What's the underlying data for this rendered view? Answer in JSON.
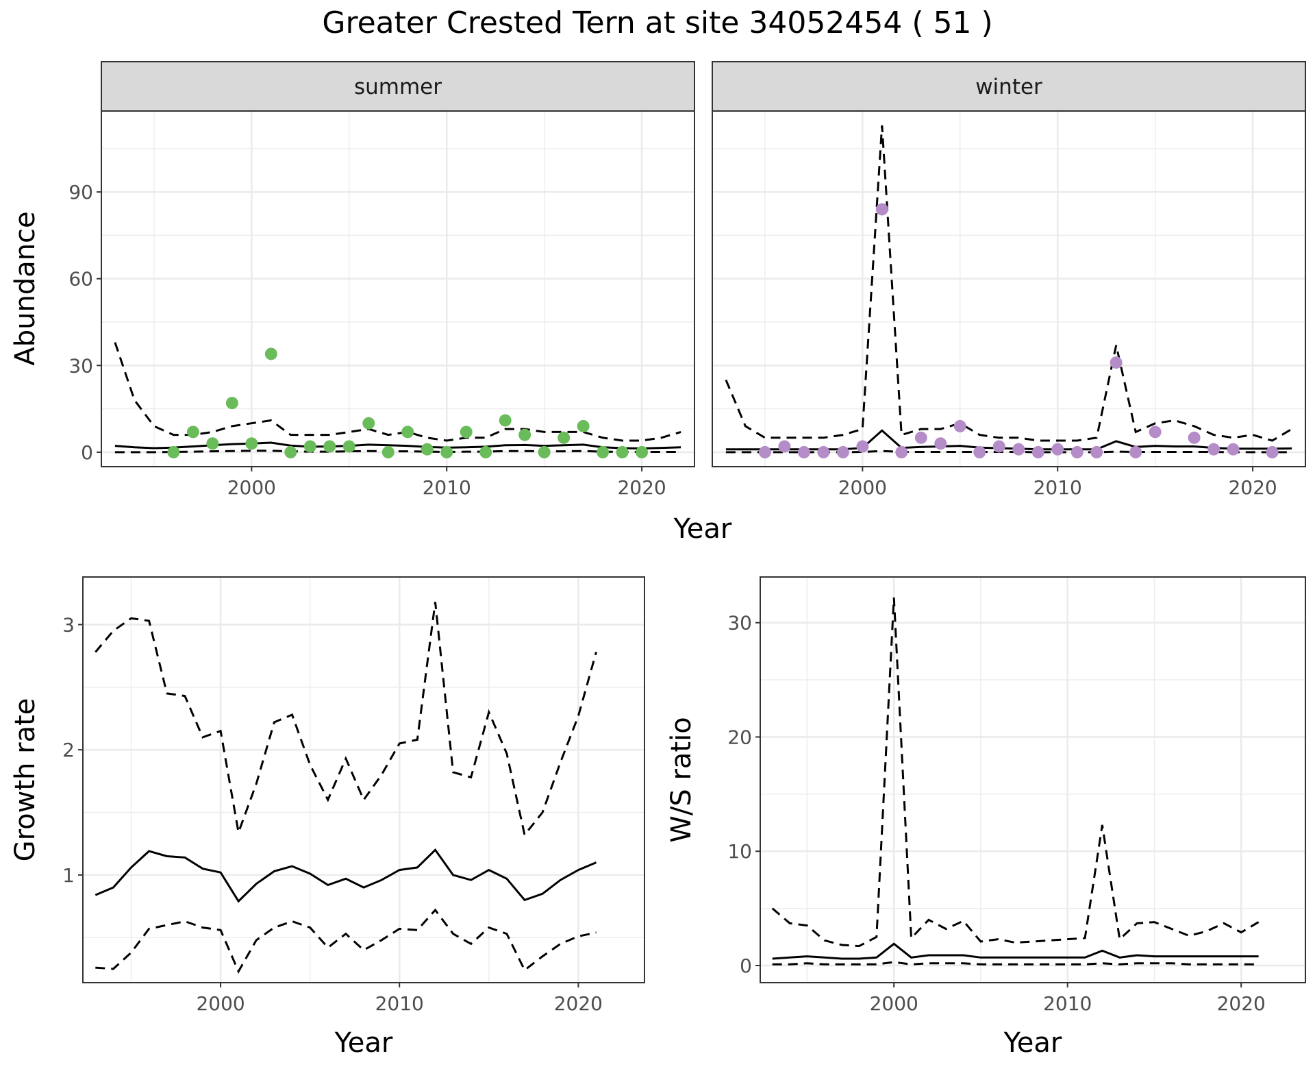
{
  "figure": {
    "title": "Greater Crested Tern at site 34052454 ( 51 )"
  },
  "chart_data": [
    {
      "type": "scatter",
      "facet": "summer",
      "xlabel": "Year",
      "ylabel": "Abundance",
      "xlim": [
        1992.3,
        2022.7
      ],
      "ylim": [
        -5,
        118
      ],
      "xticks": [
        2000,
        2010,
        2020
      ],
      "yticks": [
        0,
        30,
        60,
        90
      ],
      "point_color": "#6abb59",
      "points": {
        "x": [
          1996,
          1997,
          1998,
          1999,
          2000,
          2001,
          2002,
          2003,
          2004,
          2005,
          2006,
          2007,
          2008,
          2009,
          2010,
          2011,
          2012,
          2013,
          2014,
          2015,
          2016,
          2017,
          2018,
          2019,
          2020
        ],
        "y": [
          0,
          7,
          3,
          17,
          3,
          34,
          0,
          2,
          2,
          2,
          10,
          0,
          7,
          1,
          0,
          7,
          0,
          11,
          6,
          0,
          5,
          9,
          0,
          0,
          0
        ]
      },
      "lines": [
        {
          "style": "solid",
          "x": [
            1993,
            1994,
            1995,
            1996,
            1997,
            1998,
            1999,
            2000,
            2001,
            2002,
            2003,
            2004,
            2005,
            2006,
            2007,
            2008,
            2009,
            2010,
            2011,
            2012,
            2013,
            2014,
            2015,
            2016,
            2017,
            2018,
            2019,
            2020,
            2021,
            2022
          ],
          "y": [
            2.2,
            1.7,
            1.4,
            1.6,
            2.0,
            2.4,
            2.8,
            3.0,
            3.3,
            2.3,
            1.9,
            2.0,
            2.2,
            2.6,
            2.4,
            2.2,
            1.8,
            1.6,
            1.7,
            1.9,
            2.4,
            2.5,
            2.2,
            2.4,
            2.6,
            1.7,
            1.4,
            1.3,
            1.5,
            1.7
          ]
        },
        {
          "style": "dashed",
          "x": [
            1993,
            1994,
            1995,
            1996,
            1997,
            1998,
            1999,
            2000,
            2001,
            2002,
            2003,
            2004,
            2005,
            2006,
            2007,
            2008,
            2009,
            2010,
            2011,
            2012,
            2013,
            2014,
            2015,
            2016,
            2017,
            2018,
            2019,
            2020,
            2021,
            2022
          ],
          "y": [
            38,
            18,
            9,
            6,
            6,
            7,
            9,
            10,
            11,
            6,
            6,
            6,
            7,
            8,
            6,
            7,
            5,
            4,
            5,
            5,
            8,
            8,
            7,
            7,
            7,
            5,
            4,
            4,
            5,
            7
          ]
        },
        {
          "style": "dashed",
          "x": [
            1993,
            1994,
            1995,
            1996,
            1997,
            1998,
            1999,
            2000,
            2001,
            2002,
            2003,
            2004,
            2005,
            2006,
            2007,
            2008,
            2009,
            2010,
            2011,
            2012,
            2013,
            2014,
            2015,
            2016,
            2017,
            2018,
            2019,
            2020,
            2021,
            2022
          ],
          "y": [
            0,
            0,
            0,
            0.1,
            0.2,
            0.3,
            0.4,
            0.5,
            0.5,
            0.3,
            0.2,
            0.2,
            0.3,
            0.4,
            0.3,
            0.3,
            0.2,
            0.1,
            0.2,
            0.2,
            0.4,
            0.4,
            0.3,
            0.3,
            0.4,
            0.2,
            0.1,
            0.1,
            0.1,
            0.1
          ]
        }
      ]
    },
    {
      "type": "scatter",
      "facet": "winter",
      "xlabel": "Year",
      "ylabel": "Abundance",
      "xlim": [
        1992.3,
        2022.7
      ],
      "ylim": [
        -5,
        118
      ],
      "xticks": [
        2000,
        2010,
        2020
      ],
      "yticks": [
        0,
        30,
        60,
        90
      ],
      "point_color": "#b48cc8",
      "points": {
        "x": [
          1995,
          1996,
          1997,
          1998,
          1999,
          2000,
          2001,
          2002,
          2003,
          2004,
          2005,
          2006,
          2007,
          2008,
          2009,
          2010,
          2011,
          2012,
          2013,
          2014,
          2015,
          2017,
          2018,
          2019,
          2021
        ],
        "y": [
          0,
          2,
          0,
          0,
          0,
          2,
          84,
          0,
          5,
          3,
          9,
          0,
          2,
          1,
          0,
          1,
          0,
          0,
          31,
          0,
          7,
          5,
          1,
          1,
          0
        ]
      },
      "lines": [
        {
          "style": "solid",
          "x": [
            1993,
            1994,
            1995,
            1996,
            1997,
            1998,
            1999,
            2000,
            2001,
            2002,
            2003,
            2004,
            2005,
            2006,
            2007,
            2008,
            2009,
            2010,
            2011,
            2012,
            2013,
            2014,
            2015,
            2016,
            2017,
            2018,
            2019,
            2020,
            2021,
            2022
          ],
          "y": [
            1,
            1,
            1,
            1,
            1,
            1,
            1,
            1.5,
            7.5,
            1.5,
            1.8,
            2,
            2.2,
            1.6,
            1.4,
            1.2,
            1,
            1,
            1,
            1,
            3.8,
            1.8,
            2.2,
            2,
            2,
            1.5,
            1.2,
            1.2,
            1.2,
            1.3
          ]
        },
        {
          "style": "dashed",
          "x": [
            1993,
            1994,
            1995,
            1996,
            1997,
            1998,
            1999,
            2000,
            2001,
            2002,
            2003,
            2004,
            2005,
            2006,
            2007,
            2008,
            2009,
            2010,
            2011,
            2012,
            2013,
            2014,
            2015,
            2016,
            2017,
            2018,
            2019,
            2020,
            2021,
            2022
          ],
          "y": [
            25,
            9,
            5,
            5,
            5,
            5,
            6,
            8,
            113,
            6,
            8,
            8,
            10,
            6,
            5,
            5,
            4,
            4,
            4,
            5,
            37,
            7,
            10,
            11,
            9,
            6,
            5,
            6,
            4,
            8
          ]
        },
        {
          "style": "dashed",
          "x": [
            1993,
            1994,
            1995,
            1996,
            1997,
            1998,
            1999,
            2000,
            2001,
            2002,
            2003,
            2004,
            2005,
            2006,
            2007,
            2008,
            2009,
            2010,
            2011,
            2012,
            2013,
            2014,
            2015,
            2016,
            2017,
            2018,
            2019,
            2020,
            2021,
            2022
          ],
          "y": [
            0,
            0,
            0,
            0,
            0,
            0,
            0,
            0.1,
            0.4,
            0.1,
            0.1,
            0.1,
            0.1,
            0.1,
            0.1,
            0.1,
            0,
            0,
            0,
            0,
            0.2,
            0.1,
            0.1,
            0.1,
            0.1,
            0.1,
            0,
            0,
            0,
            0
          ]
        }
      ]
    },
    {
      "type": "line",
      "xlabel": "Year",
      "ylabel": "Growth rate",
      "xlim": [
        1992.3,
        2023.7
      ],
      "ylim": [
        0.14,
        3.38
      ],
      "xticks": [
        2000,
        2010,
        2020
      ],
      "yticks": [
        1,
        2,
        3
      ],
      "lines": [
        {
          "style": "solid",
          "x": [
            1993,
            1994,
            1995,
            1996,
            1997,
            1998,
            1999,
            2000,
            2001,
            2002,
            2003,
            2004,
            2005,
            2006,
            2007,
            2008,
            2009,
            2010,
            2011,
            2012,
            2013,
            2014,
            2015,
            2016,
            2017,
            2018,
            2019,
            2020,
            2021
          ],
          "y": [
            0.84,
            0.9,
            1.06,
            1.19,
            1.15,
            1.14,
            1.05,
            1.02,
            0.79,
            0.93,
            1.03,
            1.07,
            1.01,
            0.92,
            0.97,
            0.9,
            0.96,
            1.04,
            1.06,
            1.2,
            1.0,
            0.96,
            1.04,
            0.97,
            0.8,
            0.85,
            0.96,
            1.04,
            1.1
          ]
        },
        {
          "style": "dashed",
          "x": [
            1993,
            1994,
            1995,
            1996,
            1997,
            1998,
            1999,
            2000,
            2001,
            2002,
            2003,
            2004,
            2005,
            2006,
            2007,
            2008,
            2009,
            2010,
            2011,
            2012,
            2013,
            2014,
            2015,
            2016,
            2017,
            2018,
            2019,
            2020,
            2021
          ],
          "y": [
            2.78,
            2.95,
            3.05,
            3.03,
            2.45,
            2.43,
            2.1,
            2.15,
            1.34,
            1.73,
            2.22,
            2.28,
            1.88,
            1.6,
            1.93,
            1.6,
            1.8,
            2.05,
            2.08,
            3.18,
            1.82,
            1.78,
            2.3,
            1.97,
            1.32,
            1.5,
            1.9,
            2.27,
            2.78
          ]
        },
        {
          "style": "dashed",
          "x": [
            1993,
            1994,
            1995,
            1996,
            1997,
            1998,
            1999,
            2000,
            2001,
            2002,
            2003,
            2004,
            2005,
            2006,
            2007,
            2008,
            2009,
            2010,
            2011,
            2012,
            2013,
            2014,
            2015,
            2016,
            2017,
            2018,
            2019,
            2020,
            2021
          ],
          "y": [
            0.26,
            0.25,
            0.38,
            0.57,
            0.6,
            0.63,
            0.58,
            0.56,
            0.23,
            0.48,
            0.58,
            0.63,
            0.58,
            0.42,
            0.53,
            0.4,
            0.48,
            0.57,
            0.56,
            0.72,
            0.53,
            0.45,
            0.58,
            0.53,
            0.24,
            0.35,
            0.45,
            0.51,
            0.54
          ]
        }
      ]
    },
    {
      "type": "line",
      "xlabel": "Year",
      "ylabel": "W/S ratio",
      "xlim": [
        1992.3,
        2023.7
      ],
      "ylim": [
        -1.5,
        34
      ],
      "xticks": [
        2000,
        2010,
        2020
      ],
      "yticks": [
        0,
        10,
        20,
        30
      ],
      "lines": [
        {
          "style": "solid",
          "x": [
            1993,
            1994,
            1995,
            1996,
            1997,
            1998,
            1999,
            2000,
            2001,
            2002,
            2003,
            2004,
            2005,
            2006,
            2007,
            2008,
            2009,
            2010,
            2011,
            2012,
            2013,
            2014,
            2015,
            2016,
            2017,
            2018,
            2019,
            2020,
            2021
          ],
          "y": [
            0.6,
            0.7,
            0.8,
            0.7,
            0.6,
            0.6,
            0.7,
            1.9,
            0.7,
            0.9,
            0.9,
            0.9,
            0.7,
            0.7,
            0.7,
            0.7,
            0.7,
            0.7,
            0.7,
            1.3,
            0.7,
            0.9,
            0.8,
            0.8,
            0.8,
            0.8,
            0.8,
            0.8,
            0.8
          ]
        },
        {
          "style": "dashed",
          "x": [
            1993,
            1994,
            1995,
            1996,
            1997,
            1998,
            1999,
            2000,
            2001,
            2002,
            2003,
            2004,
            2005,
            2006,
            2007,
            2008,
            2009,
            2010,
            2011,
            2012,
            2013,
            2014,
            2015,
            2016,
            2017,
            2018,
            2019,
            2020,
            2021
          ],
          "y": [
            5,
            3.7,
            3.5,
            2.2,
            1.8,
            1.7,
            2.5,
            32.2,
            2.4,
            4.0,
            3.2,
            3.9,
            2.1,
            2.3,
            2.0,
            2.1,
            2.2,
            2.3,
            2.4,
            12.3,
            2.3,
            3.7,
            3.8,
            3.2,
            2.6,
            3.0,
            3.7,
            2.9,
            3.8
          ]
        },
        {
          "style": "dashed",
          "x": [
            1993,
            1994,
            1995,
            1996,
            1997,
            1998,
            1999,
            2000,
            2001,
            2002,
            2003,
            2004,
            2005,
            2006,
            2007,
            2008,
            2009,
            2010,
            2011,
            2012,
            2013,
            2014,
            2015,
            2016,
            2017,
            2018,
            2019,
            2020,
            2021
          ],
          "y": [
            0.1,
            0.1,
            0.2,
            0.1,
            0.1,
            0.1,
            0.1,
            0.3,
            0.1,
            0.2,
            0.2,
            0.2,
            0.1,
            0.1,
            0.1,
            0.1,
            0.1,
            0.1,
            0.1,
            0.2,
            0.1,
            0.2,
            0.2,
            0.2,
            0.1,
            0.1,
            0.1,
            0.1,
            0.1
          ]
        }
      ]
    }
  ],
  "strips": [
    "summer",
    "winter"
  ],
  "shared_xlabel_top": "Year"
}
